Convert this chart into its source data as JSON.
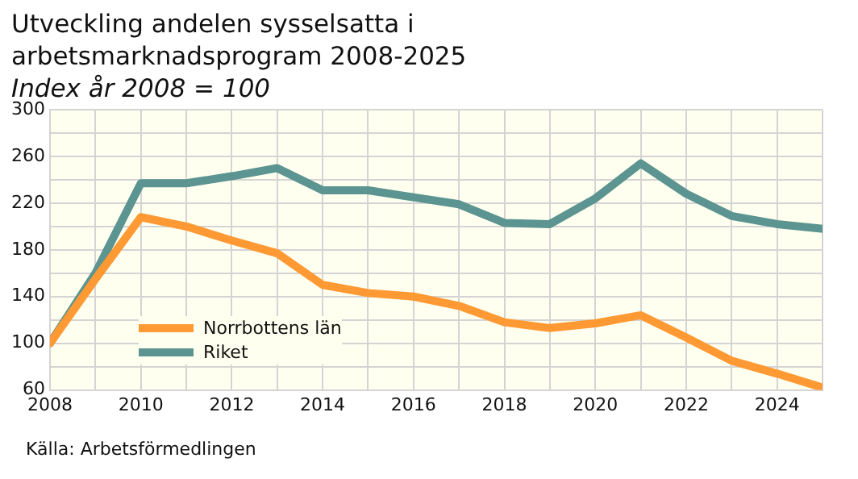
{
  "chart_data": {
    "type": "line",
    "title": "Utveckling andelen sysselsatta i\narbetsmarknadsprogram 2008-2025",
    "subtitle": "Index år 2008 = 100",
    "x": [
      2008,
      2009,
      2010,
      2011,
      2012,
      2013,
      2014,
      2015,
      2016,
      2017,
      2018,
      2019,
      2020,
      2021,
      2022,
      2023,
      2024,
      2025
    ],
    "series": [
      {
        "name": "Norrbottens län",
        "color": "#ff9933",
        "values": [
          100,
          155,
          208,
          200,
          188,
          177,
          150,
          143,
          140,
          132,
          118,
          113,
          117,
          124,
          105,
          85,
          74,
          62
        ]
      },
      {
        "name": "Riket",
        "color": "#5b9490",
        "values": [
          100,
          160,
          237,
          237,
          243,
          250,
          231,
          231,
          225,
          219,
          203,
          202,
          224,
          254,
          228,
          209,
          202,
          198
        ]
      }
    ],
    "xlim": [
      2008,
      2025
    ],
    "xticks": [
      2008,
      {
        "value": 2009,
        "label": null
      },
      2010,
      {
        "value": 2011,
        "label": null
      },
      2012,
      {
        "value": 2013,
        "label": null
      },
      2014,
      {
        "value": 2015,
        "label": null
      },
      2016,
      {
        "value": 2017,
        "label": null
      },
      2018,
      {
        "value": 2019,
        "label": null
      },
      2020,
      {
        "value": 2021,
        "label": null
      },
      2022,
      {
        "value": 2023,
        "label": null
      },
      2024,
      {
        "value": 2025,
        "label": null
      }
    ],
    "ylim": [
      60,
      300
    ],
    "yticks": [
      60,
      {
        "value": 80,
        "label": null
      },
      100,
      {
        "value": 120,
        "label": null
      },
      140,
      {
        "value": 160,
        "label": null
      },
      180,
      {
        "value": 200,
        "label": null
      },
      220,
      {
        "value": 240,
        "label": null
      },
      260,
      {
        "value": 280,
        "label": null
      },
      300
    ],
    "grid": true,
    "legend": "bottom left",
    "marker": "none",
    "line_style": "solid",
    "annotations": [
      "Källa: Arbetsförmedlingen"
    ]
  }
}
